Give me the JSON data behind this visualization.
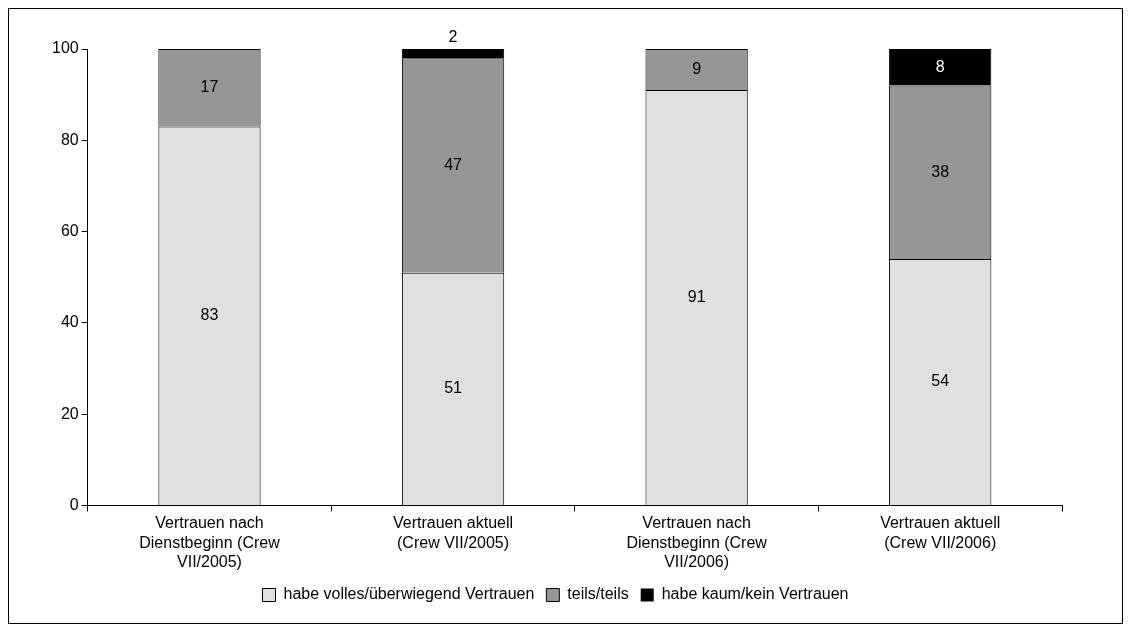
{
  "chart_data": {
    "type": "bar",
    "stacked": true,
    "categories": [
      "Vertrauen nach Dienstbeginn (Crew VII/2005)",
      "Vertrauen aktuell (Crew VII/2005)",
      "Vertrauen nach Dienstbeginn (Crew VII/2006)",
      "Vertrauen aktuell (Crew VII/2006)"
    ],
    "series": [
      {
        "name": "habe volles/überwiegend Vertrauen",
        "color": "#e0e0e0",
        "values": [
          83,
          51,
          91,
          54
        ]
      },
      {
        "name": "teils/teils",
        "color": "#969696",
        "values": [
          17,
          47,
          9,
          38
        ]
      },
      {
        "name": "habe kaum/kein Vertrauen",
        "color": "#000000",
        "values": [
          null,
          2,
          null,
          8
        ]
      }
    ],
    "ylim": [
      0,
      100
    ],
    "yticks": [
      0,
      20,
      40,
      60,
      80,
      100
    ],
    "grid": false,
    "legend": "bottom",
    "data_labels": true
  }
}
